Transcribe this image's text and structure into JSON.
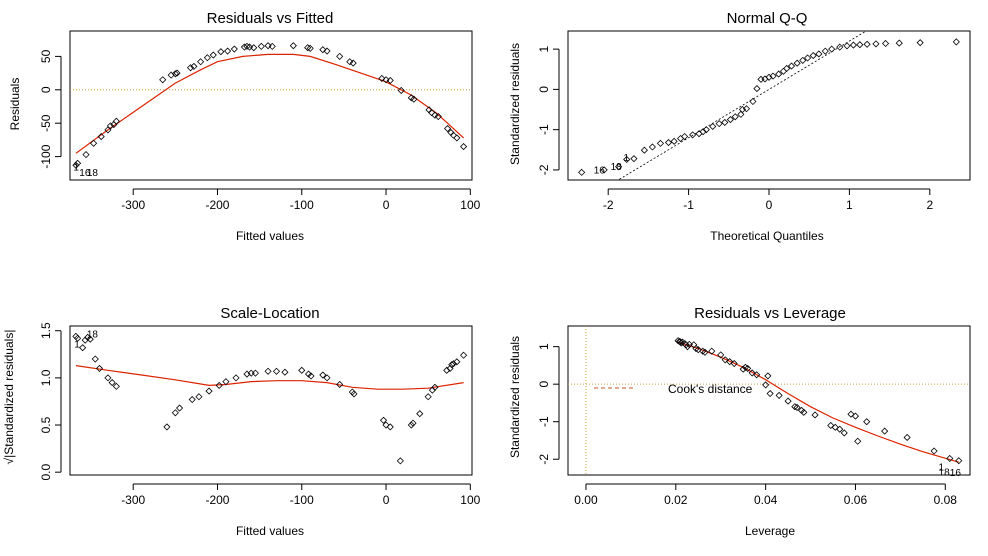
{
  "chart_data": [
    {
      "type": "scatter",
      "title": "Residuals vs Fitted",
      "xlabel": "Fitted values",
      "ylabel": "Residuals",
      "xlim": [
        -375,
        102
      ],
      "ylim": [
        -135,
        88
      ],
      "xticks": [
        -300,
        -200,
        -100,
        0,
        100
      ],
      "yticks": [
        -100,
        -50,
        0,
        50
      ],
      "hline": 0,
      "points": [
        [
          -368,
          -113
        ],
        [
          -366,
          -110
        ],
        [
          -356,
          -97
        ],
        [
          -347,
          -80
        ],
        [
          -338,
          -70
        ],
        [
          -330,
          -60
        ],
        [
          -327,
          -54
        ],
        [
          -323,
          -52
        ],
        [
          -320,
          -47
        ],
        [
          -265,
          15
        ],
        [
          -255,
          22
        ],
        [
          -250,
          24
        ],
        [
          -248,
          25
        ],
        [
          -232,
          33
        ],
        [
          -228,
          35
        ],
        [
          -220,
          42
        ],
        [
          -212,
          48
        ],
        [
          -205,
          52
        ],
        [
          -196,
          57
        ],
        [
          -188,
          58
        ],
        [
          -180,
          61
        ],
        [
          -168,
          64
        ],
        [
          -165,
          65
        ],
        [
          -162,
          64
        ],
        [
          -157,
          63
        ],
        [
          -148,
          65
        ],
        [
          -140,
          66
        ],
        [
          -135,
          65
        ],
        [
          -110,
          66
        ],
        [
          -93,
          63
        ],
        [
          -90,
          62
        ],
        [
          -75,
          60
        ],
        [
          -70,
          58
        ],
        [
          -55,
          50
        ],
        [
          -43,
          42
        ],
        [
          -39,
          40
        ],
        [
          -5,
          17
        ],
        [
          0,
          15
        ],
        [
          5,
          14
        ],
        [
          18,
          -1
        ],
        [
          30,
          -12
        ],
        [
          33,
          -14
        ],
        [
          51,
          -30
        ],
        [
          54,
          -34
        ],
        [
          58,
          -38
        ],
        [
          62,
          -40
        ],
        [
          73,
          -58
        ],
        [
          77,
          -64
        ],
        [
          80,
          -68
        ],
        [
          84,
          -72
        ],
        [
          92,
          -85
        ]
      ],
      "smooth": [
        [
          -368,
          -95
        ],
        [
          -330,
          -60
        ],
        [
          -290,
          -25
        ],
        [
          -250,
          10
        ],
        [
          -220,
          30
        ],
        [
          -200,
          42
        ],
        [
          -170,
          50
        ],
        [
          -140,
          53
        ],
        [
          -110,
          53
        ],
        [
          -90,
          50
        ],
        [
          -60,
          38
        ],
        [
          -30,
          25
        ],
        [
          0,
          12
        ],
        [
          30,
          -8
        ],
        [
          60,
          -35
        ],
        [
          92,
          -72
        ]
      ],
      "labels": [
        {
          "text": "1",
          "x": -371,
          "y": -121
        },
        {
          "text": "16",
          "x": -364,
          "y": -129
        },
        {
          "text": "18",
          "x": -355,
          "y": -129
        }
      ]
    },
    {
      "type": "scatter",
      "title": "Normal Q-Q",
      "xlabel": "Theoretical Quantiles",
      "ylabel": "Standardized residuals",
      "xlim": [
        -2.5,
        2.5
      ],
      "ylim": [
        -2.25,
        1.45
      ],
      "xticks": [
        -2,
        -1,
        0,
        1,
        2
      ],
      "yticks": [
        -2.0,
        -1.0,
        0.0,
        1.0
      ],
      "refline": [
        [
          -2.5,
          -3.0
        ],
        [
          2.5,
          3.0
        ]
      ],
      "points": [
        [
          -2.33,
          -2.06
        ],
        [
          -2.05,
          -2.0
        ],
        [
          -1.87,
          -1.92
        ],
        [
          -1.77,
          -1.74
        ],
        [
          -1.68,
          -1.72
        ],
        [
          -1.55,
          -1.51
        ],
        [
          -1.45,
          -1.43
        ],
        [
          -1.35,
          -1.34
        ],
        [
          -1.25,
          -1.32
        ],
        [
          -1.18,
          -1.29
        ],
        [
          -1.1,
          -1.22
        ],
        [
          -1.05,
          -1.17
        ],
        [
          -0.95,
          -1.13
        ],
        [
          -0.87,
          -1.1
        ],
        [
          -0.82,
          -1.05
        ],
        [
          -0.78,
          -1.0
        ],
        [
          -0.7,
          -0.92
        ],
        [
          -0.62,
          -0.85
        ],
        [
          -0.55,
          -0.82
        ],
        [
          -0.48,
          -0.75
        ],
        [
          -0.42,
          -0.68
        ],
        [
          -0.35,
          -0.62
        ],
        [
          -0.33,
          -0.5
        ],
        [
          -0.28,
          -0.48
        ],
        [
          -0.2,
          -0.3
        ],
        [
          -0.15,
          0.02
        ],
        [
          -0.1,
          0.25
        ],
        [
          -0.05,
          0.26
        ],
        [
          0.0,
          0.3
        ],
        [
          0.05,
          0.33
        ],
        [
          0.12,
          0.38
        ],
        [
          0.18,
          0.45
        ],
        [
          0.22,
          0.52
        ],
        [
          0.28,
          0.58
        ],
        [
          0.35,
          0.65
        ],
        [
          0.42,
          0.72
        ],
        [
          0.48,
          0.78
        ],
        [
          0.55,
          0.84
        ],
        [
          0.62,
          0.88
        ],
        [
          0.7,
          0.95
        ],
        [
          0.78,
          1.0
        ],
        [
          0.88,
          1.05
        ],
        [
          0.97,
          1.08
        ],
        [
          1.05,
          1.1
        ],
        [
          1.13,
          1.11
        ],
        [
          1.22,
          1.12
        ],
        [
          1.33,
          1.13
        ],
        [
          1.45,
          1.14
        ],
        [
          1.62,
          1.15
        ],
        [
          1.88,
          1.16
        ],
        [
          2.33,
          1.18
        ]
      ],
      "labels": [
        {
          "text": "16",
          "x": -2.18,
          "y": -2.09
        },
        {
          "text": "18",
          "x": -1.97,
          "y": -2.0
        },
        {
          "text": "1",
          "x": -1.81,
          "y": -1.78
        }
      ]
    },
    {
      "type": "scatter",
      "title": "Scale-Location",
      "xlabel": "Fitted values",
      "ylabel": "√|Standardized residuals|",
      "xlim": [
        -375,
        102
      ],
      "ylim": [
        -0.03,
        1.55
      ],
      "xticks": [
        -300,
        -200,
        -100,
        0,
        100
      ],
      "yticks": [
        0.0,
        0.5,
        1.0,
        1.5
      ],
      "points": [
        [
          -368,
          1.44
        ],
        [
          -366,
          1.42
        ],
        [
          -360,
          1.32
        ],
        [
          -357,
          1.4
        ],
        [
          -354,
          1.43
        ],
        [
          -351,
          1.41
        ],
        [
          -345,
          1.2
        ],
        [
          -340,
          1.1
        ],
        [
          -330,
          1.0
        ],
        [
          -325,
          0.95
        ],
        [
          -320,
          0.91
        ],
        [
          -260,
          0.48
        ],
        [
          -250,
          0.63
        ],
        [
          -245,
          0.68
        ],
        [
          -230,
          0.77
        ],
        [
          -222,
          0.8
        ],
        [
          -210,
          0.86
        ],
        [
          -198,
          0.92
        ],
        [
          -190,
          0.96
        ],
        [
          -178,
          1.0
        ],
        [
          -165,
          1.04
        ],
        [
          -160,
          1.05
        ],
        [
          -155,
          1.05
        ],
        [
          -140,
          1.07
        ],
        [
          -130,
          1.07
        ],
        [
          -120,
          1.06
        ],
        [
          -100,
          1.08
        ],
        [
          -92,
          1.04
        ],
        [
          -89,
          1.02
        ],
        [
          -75,
          1.03
        ],
        [
          -70,
          1.0
        ],
        [
          -55,
          0.93
        ],
        [
          -40,
          0.85
        ],
        [
          -38,
          0.83
        ],
        [
          -3,
          0.55
        ],
        [
          0,
          0.5
        ],
        [
          5,
          0.48
        ],
        [
          17,
          0.12
        ],
        [
          30,
          0.5
        ],
        [
          32,
          0.52
        ],
        [
          40,
          0.62
        ],
        [
          50,
          0.8
        ],
        [
          55,
          0.87
        ],
        [
          58,
          0.9
        ],
        [
          72,
          1.08
        ],
        [
          76,
          1.1
        ],
        [
          78,
          1.14
        ],
        [
          80,
          1.15
        ],
        [
          84,
          1.17
        ],
        [
          92,
          1.24
        ]
      ],
      "smooth": [
        [
          -368,
          1.13
        ],
        [
          -330,
          1.08
        ],
        [
          -290,
          1.03
        ],
        [
          -250,
          0.98
        ],
        [
          -210,
          0.92
        ],
        [
          -190,
          0.93
        ],
        [
          -160,
          0.96
        ],
        [
          -130,
          0.97
        ],
        [
          -100,
          0.97
        ],
        [
          -70,
          0.95
        ],
        [
          -40,
          0.9
        ],
        [
          -10,
          0.88
        ],
        [
          20,
          0.88
        ],
        [
          50,
          0.89
        ],
        [
          92,
          0.95
        ]
      ],
      "labels": [
        {
          "text": "18",
          "x": -355,
          "y": 1.43
        },
        {
          "text": "1",
          "x": -370,
          "y": 1.32
        }
      ]
    },
    {
      "type": "scatter",
      "title": "Residuals vs Leverage",
      "xlabel": "Leverage",
      "ylabel": "Standardized residuals",
      "xlim": [
        -0.004,
        0.0855
      ],
      "ylim": [
        -2.42,
        1.55
      ],
      "xticks": [
        0.0,
        0.02,
        0.04,
        0.06,
        0.08
      ],
      "yticks": [
        -2,
        -1,
        0,
        1
      ],
      "hline": 0,
      "vline": 0,
      "points": [
        [
          0.0205,
          1.16
        ],
        [
          0.0208,
          1.14
        ],
        [
          0.021,
          1.13
        ],
        [
          0.0212,
          1.1
        ],
        [
          0.0215,
          1.12
        ],
        [
          0.022,
          1.08
        ],
        [
          0.0223,
          1.05
        ],
        [
          0.0226,
          1.0
        ],
        [
          0.023,
          1.06
        ],
        [
          0.024,
          1.05
        ],
        [
          0.0245,
          0.95
        ],
        [
          0.025,
          0.92
        ],
        [
          0.026,
          0.88
        ],
        [
          0.0265,
          0.85
        ],
        [
          0.028,
          0.88
        ],
        [
          0.03,
          0.78
        ],
        [
          0.031,
          0.65
        ],
        [
          0.032,
          0.6
        ],
        [
          0.033,
          0.55
        ],
        [
          0.035,
          0.4
        ],
        [
          0.0355,
          0.45
        ],
        [
          0.036,
          0.42
        ],
        [
          0.037,
          0.3
        ],
        [
          0.038,
          0.25
        ],
        [
          0.04,
          -0.02
        ],
        [
          0.0405,
          0.22
        ],
        [
          0.041,
          -0.25
        ],
        [
          0.043,
          -0.3
        ],
        [
          0.045,
          -0.45
        ],
        [
          0.0465,
          -0.6
        ],
        [
          0.047,
          -0.62
        ],
        [
          0.048,
          -0.7
        ],
        [
          0.0485,
          -0.75
        ],
        [
          0.051,
          -0.82
        ],
        [
          0.0545,
          -1.1
        ],
        [
          0.0555,
          -1.15
        ],
        [
          0.0565,
          -1.2
        ],
        [
          0.0575,
          -1.3
        ],
        [
          0.059,
          -0.8
        ],
        [
          0.06,
          -0.85
        ],
        [
          0.0605,
          -1.52
        ],
        [
          0.0625,
          -1.0
        ],
        [
          0.0665,
          -1.25
        ],
        [
          0.0715,
          -1.42
        ],
        [
          0.0775,
          -1.78
        ],
        [
          0.081,
          -1.98
        ],
        [
          0.083,
          -2.04
        ]
      ],
      "smooth": [
        [
          0.0205,
          1.12
        ],
        [
          0.025,
          0.95
        ],
        [
          0.03,
          0.72
        ],
        [
          0.035,
          0.45
        ],
        [
          0.04,
          0.12
        ],
        [
          0.045,
          -0.25
        ],
        [
          0.05,
          -0.6
        ],
        [
          0.055,
          -0.9
        ],
        [
          0.06,
          -1.15
        ],
        [
          0.065,
          -1.38
        ],
        [
          0.07,
          -1.6
        ],
        [
          0.075,
          -1.8
        ],
        [
          0.083,
          -2.08
        ]
      ],
      "legend": "Cook's distance",
      "legend_position": "top-left",
      "labels": [
        {
          "text": "1",
          "x": 0.0785,
          "y": -2.3
        },
        {
          "text": "18",
          "x": 0.0785,
          "y": -2.43
        },
        {
          "text": "16",
          "x": 0.081,
          "y": -2.45
        }
      ]
    }
  ],
  "colors": {
    "points": "#000000",
    "smooth": "#dd2200",
    "refline": "#999999",
    "zero_line": "#c8a040",
    "dashed_legend": "#cc5522",
    "axis": "#000000"
  }
}
